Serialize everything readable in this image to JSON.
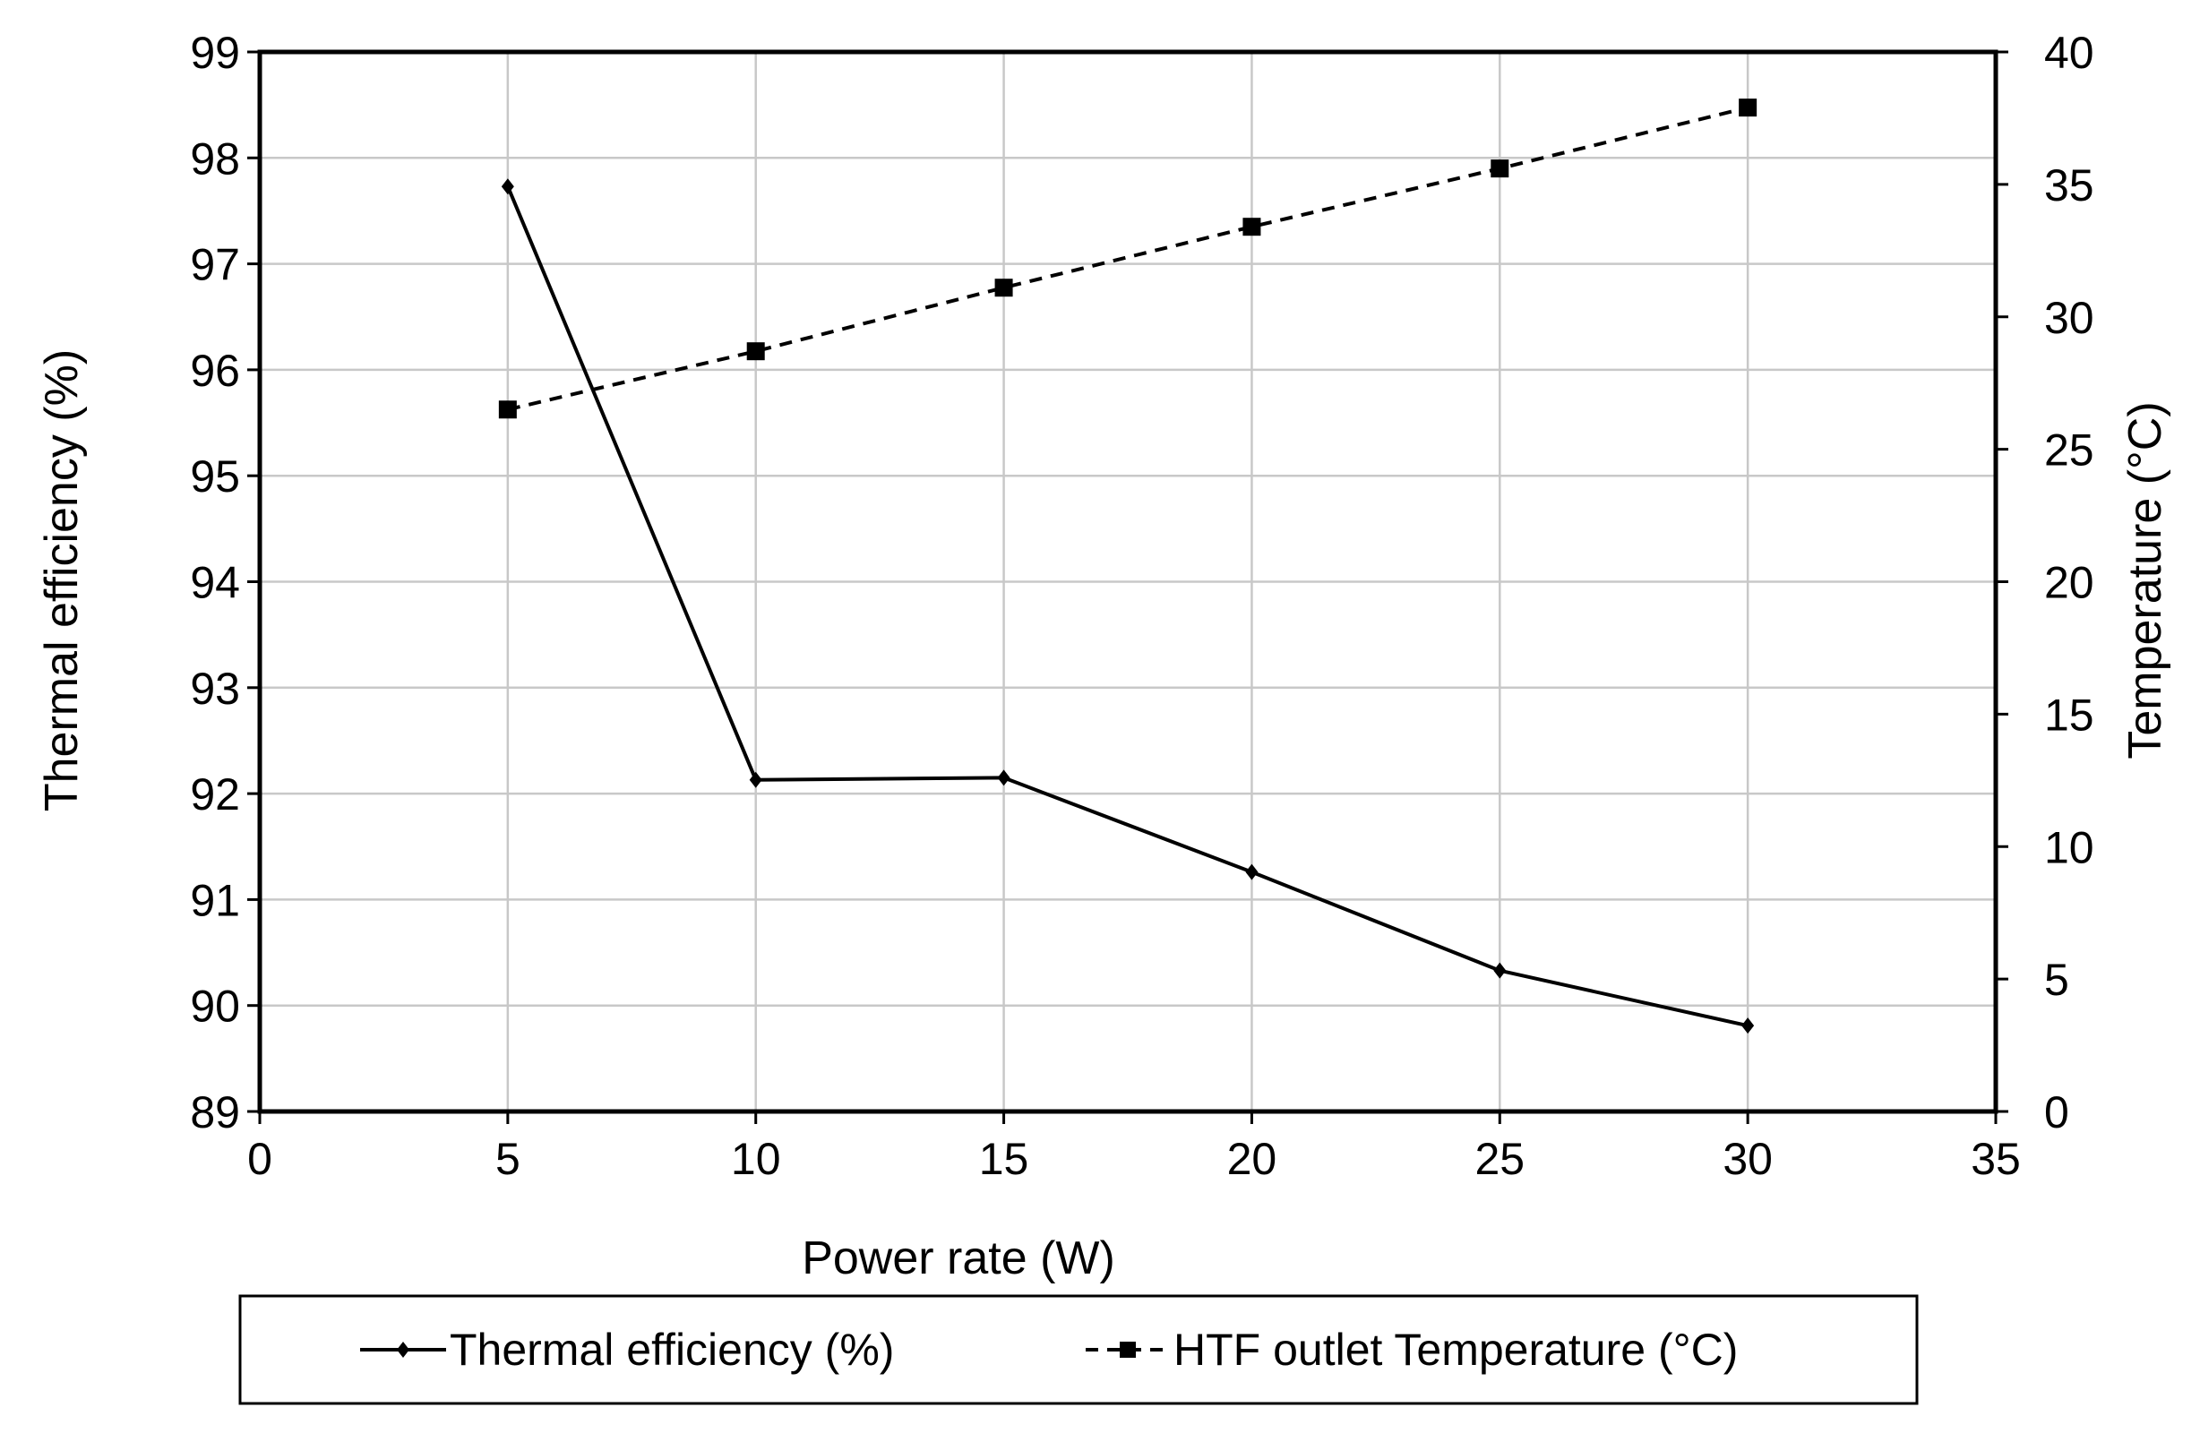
{
  "chart_data": {
    "type": "line",
    "title": "",
    "xlabel": "Power rate (W)",
    "ylabel": "Thermal efficiency (%)",
    "y2label": "Temperature (°C)",
    "xlim": [
      0,
      35
    ],
    "ylim": [
      89,
      99
    ],
    "y2lim": [
      0,
      40
    ],
    "xticks": [
      0,
      5,
      10,
      15,
      20,
      25,
      30,
      35
    ],
    "yticks": [
      89,
      90,
      91,
      92,
      93,
      94,
      95,
      96,
      97,
      98,
      99
    ],
    "y2ticks": [
      0,
      5,
      10,
      15,
      20,
      25,
      30,
      35,
      40
    ],
    "grid": true,
    "legend_position": "bottom",
    "series": [
      {
        "name": "Thermal efficiency (%)",
        "axis": "left",
        "line_style": "solid",
        "marker": "diamond",
        "color": "#000000",
        "x": [
          5,
          10,
          15,
          20,
          25,
          30
        ],
        "values": [
          97.73,
          92.13,
          92.15,
          91.26,
          90.33,
          89.81
        ]
      },
      {
        "name": "HTF outlet Temperature (°C)",
        "axis": "right",
        "line_style": "dashed",
        "marker": "square",
        "color": "#000000",
        "x": [
          5,
          10,
          15,
          20,
          25,
          30
        ],
        "values": [
          26.5,
          28.7,
          31.1,
          33.4,
          35.6,
          37.9
        ]
      }
    ]
  }
}
